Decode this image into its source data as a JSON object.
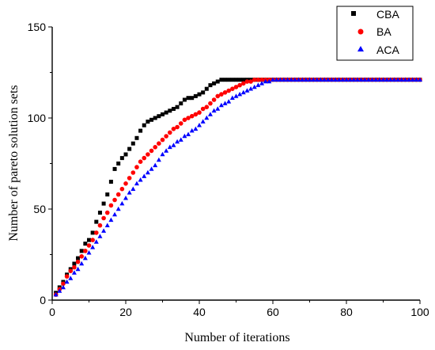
{
  "chart_data": {
    "type": "scatter",
    "xlabel": "Number of iterations",
    "ylabel": "Number of pareto solution sets",
    "xlim": [
      0,
      100
    ],
    "ylim": [
      0,
      150
    ],
    "xticks": [
      0,
      20,
      40,
      60,
      80,
      100
    ],
    "yticks": [
      0,
      50,
      100,
      150
    ],
    "grid": false,
    "legend_position": "top-right",
    "series": [
      {
        "name": "CBA",
        "marker": "square",
        "color": "#000000",
        "x": [
          1,
          2,
          3,
          4,
          5,
          6,
          7,
          8,
          9,
          10,
          11,
          12,
          13,
          14,
          15,
          16,
          17,
          18,
          19,
          20,
          21,
          22,
          23,
          24,
          25,
          26,
          27,
          28,
          29,
          30,
          31,
          32,
          33,
          34,
          35,
          36,
          37,
          38,
          39,
          40,
          41,
          42,
          43,
          44,
          45,
          46,
          47,
          48,
          49,
          50,
          51,
          52,
          53,
          54,
          55,
          56,
          57,
          58,
          59,
          60,
          61,
          62,
          63,
          64,
          65,
          66,
          67,
          68,
          69,
          70,
          71,
          72,
          73,
          74,
          75,
          76,
          77,
          78,
          79,
          80,
          81,
          82,
          83,
          84,
          85,
          86,
          87,
          88,
          89,
          90,
          91,
          92,
          93,
          94,
          95,
          96,
          97,
          98,
          99,
          100
        ],
        "y": [
          4,
          7,
          10,
          14,
          17,
          20,
          23,
          27,
          31,
          33,
          37,
          43,
          48,
          53,
          58,
          65,
          72,
          75,
          78,
          80,
          83,
          86,
          89,
          93,
          96,
          98,
          99,
          100,
          101,
          102,
          103,
          104,
          105,
          106,
          108,
          110,
          111,
          111,
          112,
          113,
          114,
          116,
          118,
          119,
          120,
          121,
          121,
          121,
          121,
          121,
          121,
          121,
          121,
          121,
          121,
          121,
          121,
          121,
          121,
          121,
          121,
          121,
          121,
          121,
          121,
          121,
          121,
          121,
          121,
          121,
          121,
          121,
          121,
          121,
          121,
          121,
          121,
          121,
          121,
          121,
          121,
          121,
          121,
          121,
          121,
          121,
          121,
          121,
          121,
          121,
          121,
          121,
          121,
          121,
          121,
          121,
          121,
          121,
          121,
          121
        ]
      },
      {
        "name": "BA",
        "marker": "circle",
        "color": "#ff0000",
        "x": [
          1,
          2,
          3,
          4,
          5,
          6,
          7,
          8,
          9,
          10,
          11,
          12,
          13,
          14,
          15,
          16,
          17,
          18,
          19,
          20,
          21,
          22,
          23,
          24,
          25,
          26,
          27,
          28,
          29,
          30,
          31,
          32,
          33,
          34,
          35,
          36,
          37,
          38,
          39,
          40,
          41,
          42,
          43,
          44,
          45,
          46,
          47,
          48,
          49,
          50,
          51,
          52,
          53,
          54,
          55,
          56,
          57,
          58,
          59,
          60,
          61,
          62,
          63,
          64,
          65,
          66,
          67,
          68,
          69,
          70,
          71,
          72,
          73,
          74,
          75,
          76,
          77,
          78,
          79,
          80,
          81,
          82,
          83,
          84,
          85,
          86,
          87,
          88,
          89,
          90,
          91,
          92,
          93,
          94,
          95,
          96,
          97,
          98,
          99,
          100
        ],
        "y": [
          3,
          6,
          9,
          13,
          16,
          18,
          21,
          24,
          27,
          30,
          33,
          37,
          41,
          45,
          48,
          52,
          55,
          58,
          61,
          64,
          67,
          70,
          73,
          76,
          78,
          80,
          82,
          84,
          86,
          88,
          90,
          92,
          94,
          95,
          97,
          99,
          100,
          101,
          102,
          103,
          105,
          106,
          108,
          110,
          112,
          113,
          114,
          115,
          116,
          117,
          118,
          119,
          120,
          120,
          121,
          121,
          121,
          121,
          121,
          121,
          121,
          121,
          121,
          121,
          121,
          121,
          121,
          121,
          121,
          121,
          121,
          121,
          121,
          121,
          121,
          121,
          121,
          121,
          121,
          121,
          121,
          121,
          121,
          121,
          121,
          121,
          121,
          121,
          121,
          121,
          121,
          121,
          121,
          121,
          121,
          121,
          121,
          121,
          121,
          121
        ]
      },
      {
        "name": "ACA",
        "marker": "triangle",
        "color": "#0000ff",
        "x": [
          1,
          2,
          3,
          4,
          5,
          6,
          7,
          8,
          9,
          10,
          11,
          12,
          13,
          14,
          15,
          16,
          17,
          18,
          19,
          20,
          21,
          22,
          23,
          24,
          25,
          26,
          27,
          28,
          29,
          30,
          31,
          32,
          33,
          34,
          35,
          36,
          37,
          38,
          39,
          40,
          41,
          42,
          43,
          44,
          45,
          46,
          47,
          48,
          49,
          50,
          51,
          52,
          53,
          54,
          55,
          56,
          57,
          58,
          59,
          60,
          61,
          62,
          63,
          64,
          65,
          66,
          67,
          68,
          69,
          70,
          71,
          72,
          73,
          74,
          75,
          76,
          77,
          78,
          79,
          80,
          81,
          82,
          83,
          84,
          85,
          86,
          87,
          88,
          89,
          90,
          91,
          92,
          93,
          94,
          95,
          96,
          97,
          98,
          99,
          100
        ],
        "y": [
          3,
          5,
          7,
          10,
          12,
          15,
          17,
          20,
          23,
          26,
          29,
          32,
          35,
          38,
          41,
          44,
          47,
          50,
          53,
          56,
          59,
          61,
          64,
          66,
          68,
          70,
          72,
          74,
          77,
          80,
          82,
          84,
          85,
          87,
          88,
          90,
          91,
          93,
          94,
          96,
          98,
          100,
          102,
          104,
          105,
          107,
          108,
          109,
          111,
          112,
          113,
          114,
          115,
          116,
          117,
          118,
          119,
          120,
          120,
          121,
          121,
          121,
          121,
          121,
          121,
          121,
          121,
          121,
          121,
          121,
          121,
          121,
          121,
          121,
          121,
          121,
          121,
          121,
          121,
          121,
          121,
          121,
          121,
          121,
          121,
          121,
          121,
          121,
          121,
          121,
          121,
          121,
          121,
          121,
          121,
          121,
          121,
          121,
          121,
          121
        ]
      }
    ]
  }
}
